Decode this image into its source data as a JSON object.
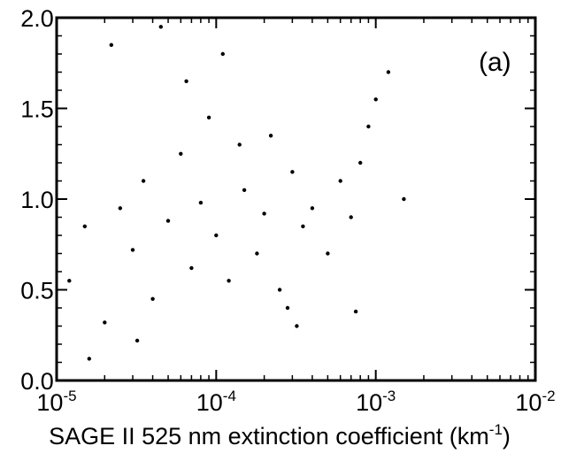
{
  "chart_data": {
    "type": "scatter",
    "panel_label": "(a)",
    "xlabel": "SAGE II 525 nm extinction coefficient (km-1)",
    "xlabel_main": "SAGE II 525 nm extinction coefficient (km",
    "xlabel_sup": "-1",
    "xlabel_close": ")",
    "x_scale": "log",
    "xlim": [
      1e-05,
      0.01
    ],
    "ylim": [
      0.0,
      2.0
    ],
    "xticks": [
      {
        "value": 1e-05,
        "base": "10",
        "exp": "-5"
      },
      {
        "value": 0.0001,
        "base": "10",
        "exp": "-4"
      },
      {
        "value": 0.001,
        "base": "10",
        "exp": "-3"
      },
      {
        "value": 0.01,
        "base": "10",
        "exp": "-2"
      }
    ],
    "yticks": [
      {
        "value": 0.0,
        "label": "0.0"
      },
      {
        "value": 0.5,
        "label": "0.5"
      },
      {
        "value": 1.0,
        "label": "1.0"
      },
      {
        "value": 1.5,
        "label": "1.5"
      },
      {
        "value": 2.0,
        "label": "2.0"
      }
    ],
    "marker_color": "#000000",
    "points": [
      [
        1.2e-05,
        0.55
      ],
      [
        1.5e-05,
        0.85
      ],
      [
        2e-05,
        0.32
      ],
      [
        2.5e-05,
        0.95
      ],
      [
        3e-05,
        0.72
      ],
      [
        3.5e-05,
        1.1
      ],
      [
        4e-05,
        0.45
      ],
      [
        5e-05,
        0.88
      ],
      [
        6e-05,
        1.25
      ],
      [
        7e-05,
        0.62
      ],
      [
        8e-05,
        0.98
      ],
      [
        9e-05,
        1.45
      ],
      [
        0.0001,
        0.8
      ],
      [
        0.00012,
        0.55
      ],
      [
        0.00015,
        1.05
      ],
      [
        0.00018,
        0.7
      ],
      [
        0.0002,
        0.92
      ],
      [
        0.00025,
        0.5
      ],
      [
        0.00028,
        0.4
      ],
      [
        0.0003,
        1.15
      ],
      [
        0.00035,
        0.85
      ],
      [
        0.0004,
        0.95
      ],
      [
        0.0005,
        0.7
      ],
      [
        0.0006,
        1.1
      ],
      [
        0.0007,
        0.9
      ],
      [
        0.0008,
        1.2
      ],
      [
        0.0009,
        1.4
      ],
      [
        0.001,
        1.55
      ],
      [
        0.0012,
        1.7
      ],
      [
        0.0015,
        1.0
      ],
      [
        2.2e-05,
        1.85
      ],
      [
        4.5e-05,
        1.95
      ],
      [
        6.5e-05,
        1.65
      ],
      [
        1.6e-05,
        0.12
      ],
      [
        3.2e-05,
        0.22
      ],
      [
        0.00011,
        1.8
      ],
      [
        0.00014,
        1.3
      ],
      [
        0.00022,
        1.35
      ],
      [
        0.00032,
        0.3
      ],
      [
        0.00075,
        0.38
      ]
    ]
  }
}
